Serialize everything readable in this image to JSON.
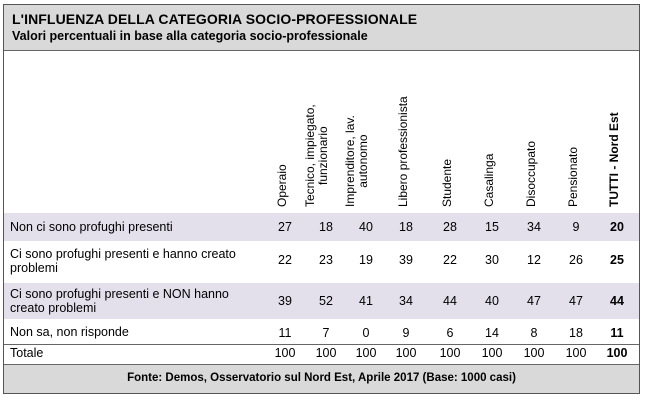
{
  "title": "L'INFLUENZA DELLA CATEGORIA SOCIO-PROFESSIONALE",
  "subtitle": "Valori percentuali in base alla categoria socio-professionale",
  "columns": [
    {
      "line1": "Operaio",
      "line2": ""
    },
    {
      "line1": "Tecnico, impiegato,",
      "line2": "funzionario"
    },
    {
      "line1": "Imprenditore, lav.",
      "line2": "autonomo"
    },
    {
      "line1": "Libero professionista",
      "line2": ""
    },
    {
      "line1": "Studente",
      "line2": ""
    },
    {
      "line1": "Casalinga",
      "line2": ""
    },
    {
      "line1": "Disoccupato",
      "line2": ""
    },
    {
      "line1": "Pensionato",
      "line2": ""
    },
    {
      "line1": "TUTTI - Nord Est",
      "line2": ""
    }
  ],
  "rows": [
    {
      "label": "Non ci sono profughi presenti",
      "values": [
        "27",
        "18",
        "40",
        "18",
        "28",
        "15",
        "34",
        "9",
        "20"
      ]
    },
    {
      "label": "Ci sono profughi presenti e hanno creato problemi",
      "values": [
        "22",
        "23",
        "19",
        "39",
        "22",
        "30",
        "12",
        "26",
        "25"
      ]
    },
    {
      "label": "Ci sono profughi presenti e NON hanno creato problemi",
      "values": [
        "39",
        "52",
        "41",
        "34",
        "44",
        "40",
        "47",
        "47",
        "44"
      ]
    },
    {
      "label": "Non sa, non risponde",
      "values": [
        "11",
        "7",
        "0",
        "9",
        "6",
        "14",
        "8",
        "18",
        "11"
      ]
    },
    {
      "label": "Totale",
      "values": [
        "100",
        "100",
        "100",
        "100",
        "100",
        "100",
        "100",
        "100",
        "100"
      ]
    }
  ],
  "footer": "Fonte: Demos, Osservatorio sul Nord Est, Aprile 2017 (Base: 1000 casi)"
}
